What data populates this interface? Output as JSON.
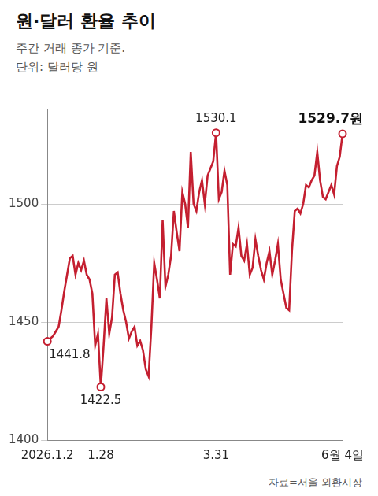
{
  "chart_data": {
    "type": "line",
    "title": "원·달러 환율 추이",
    "subtitle": "주간 거래 종가 기준.",
    "note": "단위: 달러당 원",
    "source": "자료=서울 외환시장",
    "color": "#c41f30",
    "grid": true,
    "legend": false,
    "categories": [
      "2026.1.2",
      null,
      null,
      null,
      null,
      null,
      null,
      null,
      null,
      null,
      null,
      null,
      null,
      null,
      null,
      null,
      null,
      null,
      null,
      "1.28",
      null,
      null,
      null,
      null,
      null,
      null,
      null,
      null,
      null,
      null,
      null,
      null,
      null,
      null,
      null,
      null,
      null,
      null,
      null,
      null,
      null,
      null,
      null,
      null,
      null,
      null,
      null,
      null,
      null,
      null,
      null,
      null,
      null,
      null,
      null,
      null,
      null,
      null,
      null,
      null,
      "3.31",
      null,
      null,
      null,
      null,
      null,
      null,
      null,
      null,
      null,
      null,
      null,
      null,
      null,
      null,
      null,
      null,
      null,
      null,
      null,
      null,
      null,
      null,
      null,
      null,
      null,
      null,
      null,
      null,
      null,
      null,
      null,
      null,
      null,
      null,
      null,
      null,
      null,
      null,
      null,
      null,
      null,
      null,
      null,
      null,
      "6월 4일"
    ],
    "values": [
      1441.8,
      1443,
      1444,
      1446,
      1448,
      1455,
      1463,
      1470,
      1477,
      1478,
      1470,
      1475,
      1472,
      1476,
      1470,
      1468,
      1462,
      1440,
      1445,
      1422.5,
      1440,
      1460,
      1445,
      1452,
      1470,
      1471,
      1462,
      1455,
      1450,
      1443,
      1446,
      1448,
      1440,
      1442,
      1438,
      1430,
      1427,
      1448,
      1475,
      1468,
      1460,
      1493,
      1465,
      1470,
      1478,
      1497,
      1488,
      1480,
      1505,
      1500,
      1490,
      1522,
      1500,
      1497,
      1505,
      1510,
      1500,
      1512,
      1515,
      1518,
      1530.1,
      1502,
      1505,
      1514,
      1508,
      1470,
      1483,
      1482,
      1490,
      1478,
      1476,
      1483,
      1470,
      1473,
      1485,
      1478,
      1472,
      1468,
      1475,
      1480,
      1470,
      1476,
      1483,
      1468,
      1462,
      1456,
      1455,
      1480,
      1497,
      1498,
      1496,
      1500,
      1508,
      1507,
      1510,
      1512,
      1522,
      1510,
      1503,
      1502,
      1505,
      1508,
      1504,
      1516,
      1520,
      1529.7
    ],
    "ylim": [
      1400,
      1540
    ],
    "yticks": [
      1400,
      1450,
      1500
    ],
    "annotations": [
      {
        "value": 1441.8,
        "label": "1441.8"
      },
      {
        "value": 1422.5,
        "label": "1422.5"
      },
      {
        "value": 1530.1,
        "label": "1530.1"
      },
      {
        "value": 1529.7,
        "label": "1529.7원"
      }
    ]
  }
}
